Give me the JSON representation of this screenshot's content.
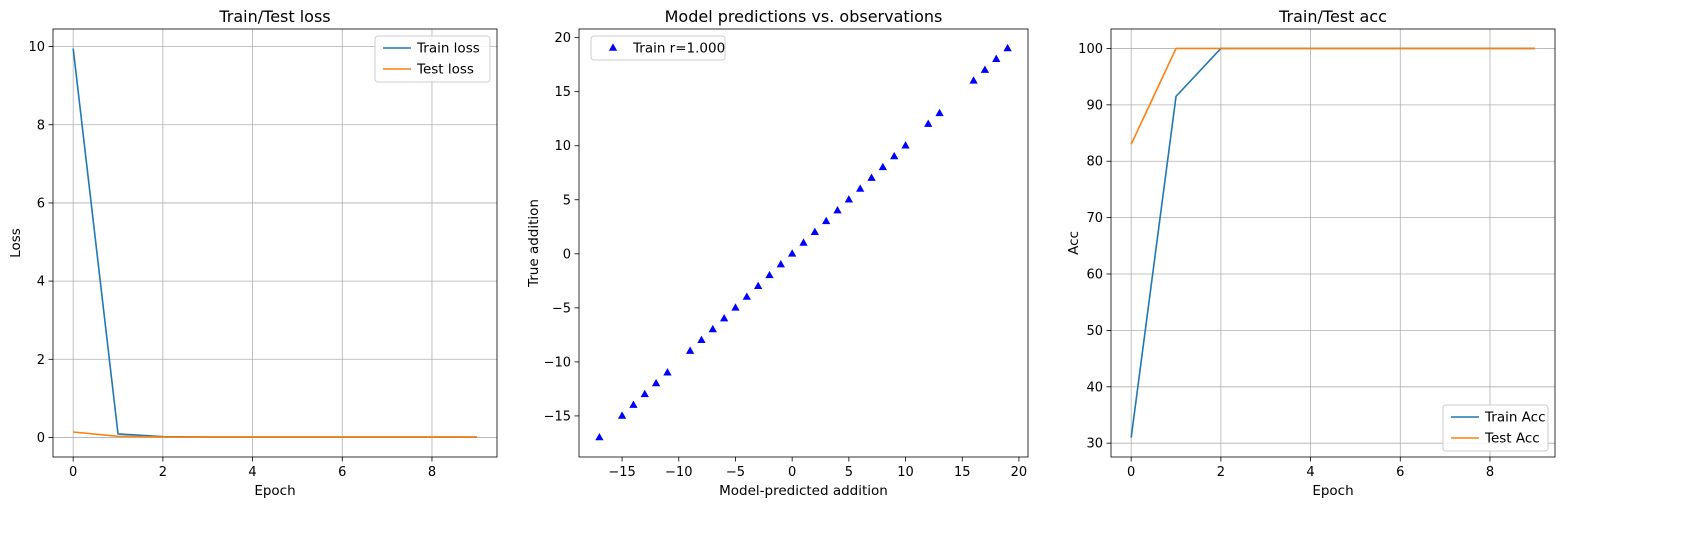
{
  "colors": {
    "train": "#1f77b4",
    "test": "#ff7f0e",
    "scatter": "#0000ff",
    "grid": "#b0b0b0",
    "frame": "#000000"
  },
  "chart_data": [
    {
      "type": "line",
      "title": "Train/Test loss",
      "xlabel": "Epoch",
      "ylabel": "Loss",
      "xlim": [
        -0.45,
        9.45
      ],
      "ylim": [
        -0.5,
        10.45
      ],
      "xticks": [
        0,
        2,
        4,
        6,
        8
      ],
      "yticks": [
        0,
        2,
        4,
        6,
        8,
        10
      ],
      "grid": true,
      "legend_position": "top-right",
      "x": [
        0,
        1,
        2,
        3,
        4,
        5,
        6,
        7,
        8,
        9
      ],
      "series": [
        {
          "name": "Train loss",
          "color": "#1f77b4",
          "values": [
            9.95,
            0.09,
            0.02,
            0.01,
            0.01,
            0.01,
            0.01,
            0.01,
            0.01,
            0.01
          ]
        },
        {
          "name": "Test loss",
          "color": "#ff7f0e",
          "values": [
            0.14,
            0.03,
            0.01,
            0.01,
            0.01,
            0.01,
            0.01,
            0.01,
            0.01,
            0.01
          ]
        }
      ]
    },
    {
      "type": "scatter",
      "title": "Model predictions vs. observations",
      "xlabel": "Model-predicted addition",
      "ylabel": "True addition",
      "xlim": [
        -18.8,
        20.8
      ],
      "ylim": [
        -18.8,
        20.8
      ],
      "xticks": [
        -15,
        -10,
        -5,
        0,
        5,
        10,
        15,
        20
      ],
      "yticks": [
        -15,
        -10,
        -5,
        0,
        5,
        10,
        15,
        20
      ],
      "grid": false,
      "legend_position": "top-left",
      "marker": "triangle-up",
      "series": [
        {
          "name": "Train r=1.000",
          "color": "#0000ff",
          "x": [
            -17,
            -15,
            -14,
            -13,
            -12,
            -11,
            -9,
            -8,
            -7,
            -6,
            -5,
            -4,
            -3,
            -2,
            -1,
            0,
            1,
            2,
            3,
            4,
            5,
            6,
            7,
            8,
            9,
            10,
            12,
            13,
            16,
            17,
            18,
            19
          ],
          "y": [
            -17,
            -15,
            -14,
            -13,
            -12,
            -11,
            -9,
            -8,
            -7,
            -6,
            -5,
            -4,
            -3,
            -2,
            -1,
            0,
            1,
            2,
            3,
            4,
            5,
            6,
            7,
            8,
            9,
            10,
            12,
            13,
            16,
            17,
            18,
            19
          ]
        }
      ]
    },
    {
      "type": "line",
      "title": "Train/Test acc",
      "xlabel": "Epoch",
      "ylabel": "Acc",
      "xlim": [
        -0.45,
        9.45
      ],
      "ylim": [
        27.55,
        103.45
      ],
      "xticks": [
        0,
        2,
        4,
        6,
        8
      ],
      "yticks": [
        30,
        40,
        50,
        60,
        70,
        80,
        90,
        100
      ],
      "grid": true,
      "legend_position": "bottom-right",
      "x": [
        0,
        1,
        2,
        3,
        4,
        5,
        6,
        7,
        8,
        9
      ],
      "series": [
        {
          "name": "Train Acc",
          "color": "#1f77b4",
          "values": [
            31,
            91.5,
            100,
            100,
            100,
            100,
            100,
            100,
            100,
            100
          ]
        },
        {
          "name": "Test Acc",
          "color": "#ff7f0e",
          "values": [
            83,
            100,
            100,
            100,
            100,
            100,
            100,
            100,
            100,
            100
          ]
        }
      ]
    }
  ]
}
